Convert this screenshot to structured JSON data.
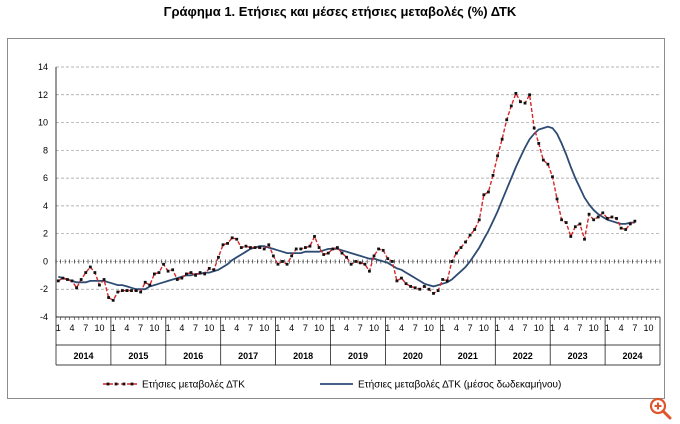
{
  "title": "Γράφημα 1. Ετήσιες και μέσες ετήσιες μεταβολές (%) ΔΤΚ",
  "zoom_icon": "zoom-in-icon",
  "colors": {
    "annual": "#d7262a",
    "marker": "#111111",
    "average": "#2d4b73",
    "grid": "#9a9a9a",
    "zoom": "#e0562c"
  },
  "chart_data": {
    "type": "line",
    "title": "Γράφημα 1. Ετήσιες και μέσες ετήσιες μεταβολές (%) ΔΤΚ",
    "ylim": [
      -4,
      14
    ],
    "yticks": [
      -4,
      -2,
      0,
      2,
      4,
      6,
      8,
      10,
      12,
      14
    ],
    "grid": "horizontal dashed",
    "legend_position": "bottom",
    "x_month_labels": [
      1,
      4,
      7,
      10
    ],
    "years": [
      "2014",
      "2015",
      "2016",
      "2017",
      "2018",
      "2019",
      "2020",
      "2021",
      "2022",
      "2023",
      "2024"
    ],
    "x_start": "2014-01",
    "series": [
      {
        "name": "Ετήσιες μεταβολές ΔΤΚ",
        "style": "dashed-with-markers",
        "values": [
          -1.4,
          -1.2,
          -1.3,
          -1.4,
          -1.9,
          -1.3,
          -0.8,
          -0.4,
          -0.8,
          -1.7,
          -1.3,
          -2.6,
          -2.8,
          -2.2,
          -2.1,
          -2.1,
          -2.1,
          -2.1,
          -2.2,
          -1.5,
          -1.7,
          -0.9,
          -0.8,
          -0.2,
          -0.7,
          -0.6,
          -1.3,
          -1.2,
          -0.9,
          -0.8,
          -1.0,
          -0.8,
          -0.9,
          -0.5,
          -0.6,
          0.3,
          1.2,
          1.3,
          1.7,
          1.6,
          1.0,
          1.1,
          1.0,
          1.0,
          1.0,
          0.9,
          1.2,
          0.4,
          -0.2,
          0.0,
          -0.2,
          0.4,
          0.9,
          0.9,
          1.0,
          1.1,
          1.8,
          1.0,
          0.5,
          0.6,
          0.9,
          1.0,
          0.6,
          0.3,
          -0.2,
          0.0,
          -0.1,
          -0.2,
          -0.7,
          0.4,
          0.9,
          0.8,
          0.2,
          0.0,
          -1.4,
          -1.2,
          -1.6,
          -1.8,
          -1.9,
          -2.0,
          -1.8,
          -2.0,
          -2.3,
          -2.1,
          -1.3,
          -1.4,
          0.0,
          0.6,
          1.0,
          1.4,
          1.9,
          2.3,
          3.0,
          4.8,
          5.0,
          6.2,
          7.6,
          8.8,
          10.2,
          11.2,
          12.1,
          11.5,
          11.4,
          12.0,
          9.6,
          8.5,
          7.3,
          7.0,
          6.1,
          4.5,
          3.0,
          2.8,
          1.8,
          2.5,
          2.7,
          1.6,
          3.4,
          3.0,
          3.2,
          3.5,
          3.1,
          3.2,
          3.1,
          2.4,
          2.3,
          2.7,
          2.9
        ]
      },
      {
        "name": "Ετήσιες μεταβολές ΔΤΚ (μέσος δωδεκαμήνου)",
        "style": "solid",
        "values": [
          -1.1,
          -1.2,
          -1.3,
          -1.4,
          -1.5,
          -1.5,
          -1.5,
          -1.4,
          -1.4,
          -1.4,
          -1.4,
          -1.5,
          -1.6,
          -1.7,
          -1.7,
          -1.8,
          -1.9,
          -2.0,
          -2.0,
          -2.0,
          -1.8,
          -1.7,
          -1.6,
          -1.5,
          -1.4,
          -1.3,
          -1.2,
          -1.1,
          -1.0,
          -1.0,
          -0.9,
          -0.9,
          -0.8,
          -0.8,
          -0.7,
          -0.6,
          -0.4,
          -0.2,
          0.1,
          0.3,
          0.5,
          0.7,
          0.9,
          1.0,
          1.1,
          1.1,
          1.0,
          0.9,
          0.8,
          0.7,
          0.6,
          0.6,
          0.6,
          0.6,
          0.7,
          0.7,
          0.7,
          0.7,
          0.8,
          0.9,
          0.9,
          0.9,
          0.8,
          0.7,
          0.6,
          0.5,
          0.4,
          0.3,
          0.2,
          0.2,
          0.1,
          0.0,
          -0.1,
          -0.3,
          -0.5,
          -0.6,
          -0.8,
          -1.0,
          -1.2,
          -1.4,
          -1.6,
          -1.7,
          -1.8,
          -1.7,
          -1.6,
          -1.5,
          -1.3,
          -1.0,
          -0.7,
          -0.4,
          0.0,
          0.5,
          1.0,
          1.6,
          2.2,
          2.9,
          3.6,
          4.4,
          5.2,
          6.0,
          6.8,
          7.5,
          8.2,
          8.8,
          9.2,
          9.5,
          9.6,
          9.7,
          9.6,
          9.2,
          8.5,
          7.7,
          6.8,
          6.0,
          5.3,
          4.6,
          4.1,
          3.7,
          3.4,
          3.2,
          3.0,
          2.9,
          2.8,
          2.7,
          2.7,
          2.8,
          2.8
        ]
      }
    ]
  }
}
